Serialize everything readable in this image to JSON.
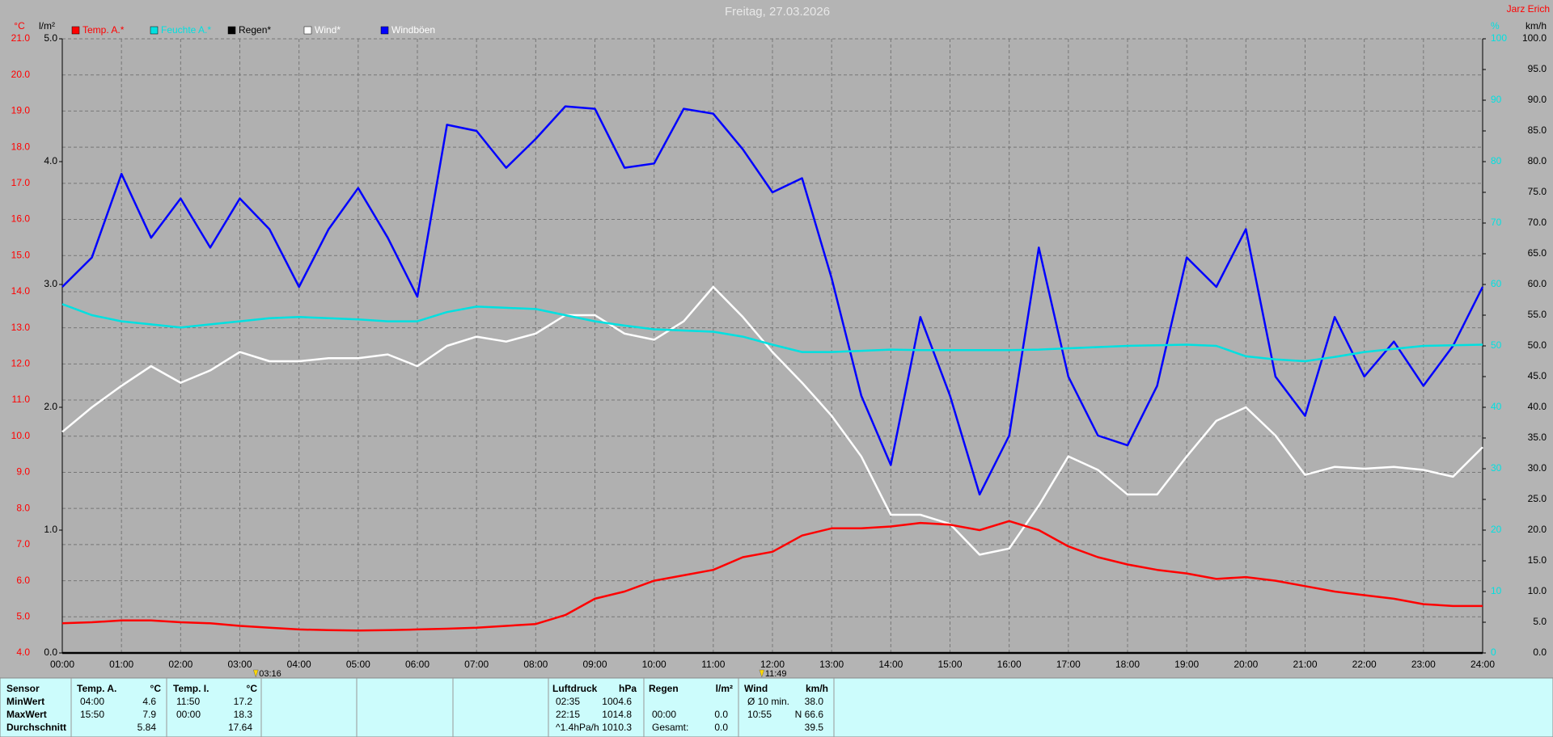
{
  "chart_data": {
    "type": "line",
    "title": "Freitag, 27.03.2026",
    "author": "Jarz Erich",
    "ylabel": "°C",
    "rain_ylabel": "l/m²",
    "cyan_ylabel": "%",
    "y2label": "km/h",
    "x": [
      0,
      0.5,
      1,
      1.5,
      2,
      2.5,
      3,
      3.5,
      4,
      4.5,
      5,
      5.5,
      6,
      6.5,
      7,
      7.5,
      8,
      8.5,
      9,
      9.5,
      10,
      10.5,
      11,
      11.5,
      12,
      12.5,
      13,
      13.5,
      14,
      14.5,
      15,
      15.5,
      16,
      16.5,
      17,
      17.5,
      18,
      18.5,
      19,
      19.5,
      20,
      20.5,
      21,
      21.5,
      22,
      22.5,
      23,
      23.5,
      24
    ],
    "xlim": [
      0,
      24
    ],
    "xticks": [
      {
        "value": 0,
        "label": "00:00"
      },
      {
        "value": 1,
        "label": "01:00"
      },
      {
        "value": 2,
        "label": "02:00"
      },
      {
        "value": 3,
        "label": "03:00"
      },
      {
        "value": 4,
        "label": "04:00"
      },
      {
        "value": 5,
        "label": "05:00"
      },
      {
        "value": 6,
        "label": "06:00"
      },
      {
        "value": 7,
        "label": "07:00"
      },
      {
        "value": 8,
        "label": "08:00"
      },
      {
        "value": 9,
        "label": "09:00"
      },
      {
        "value": 10,
        "label": "10:00"
      },
      {
        "value": 11,
        "label": "11:00"
      },
      {
        "value": 12,
        "label": "12:00"
      },
      {
        "value": 13,
        "label": "13:00"
      },
      {
        "value": 14,
        "label": "14:00"
      },
      {
        "value": 15,
        "label": "15:00"
      },
      {
        "value": 16,
        "label": "16:00"
      },
      {
        "value": 17,
        "label": "17:00"
      },
      {
        "value": 18,
        "label": "18:00"
      },
      {
        "value": 19,
        "label": "19:00"
      },
      {
        "value": 20,
        "label": "20:00"
      },
      {
        "value": 21,
        "label": "21:00"
      },
      {
        "value": 22,
        "label": "22:00"
      },
      {
        "value": 23,
        "label": "23:00"
      },
      {
        "value": 24,
        "label": "24:00"
      }
    ],
    "ylim": [
      4,
      21
    ],
    "yticks": [
      {
        "value": 4,
        "label": "4.0"
      },
      {
        "value": 5,
        "label": "5.0"
      },
      {
        "value": 6,
        "label": "6.0"
      },
      {
        "value": 7,
        "label": "7.0"
      },
      {
        "value": 8,
        "label": "8.0"
      },
      {
        "value": 9,
        "label": "9.0"
      },
      {
        "value": 10,
        "label": "10.0"
      },
      {
        "value": 11,
        "label": "11.0"
      },
      {
        "value": 12,
        "label": "12.0"
      },
      {
        "value": 13,
        "label": "13.0"
      },
      {
        "value": 14,
        "label": "14.0"
      },
      {
        "value": 15,
        "label": "15.0"
      },
      {
        "value": 16,
        "label": "16.0"
      },
      {
        "value": 17,
        "label": "17.0"
      },
      {
        "value": 18,
        "label": "18.0"
      },
      {
        "value": 19,
        "label": "19.0"
      },
      {
        "value": 20,
        "label": "20.0"
      },
      {
        "value": 21,
        "label": "21.0"
      }
    ],
    "rain_ylim": [
      0,
      5
    ],
    "rain_yticks": [
      {
        "value": 0,
        "label": "0.0"
      },
      {
        "value": 1,
        "label": "1.0"
      },
      {
        "value": 2,
        "label": "2.0"
      },
      {
        "value": 3,
        "label": "3.0"
      },
      {
        "value": 4,
        "label": "4.0"
      },
      {
        "value": 5,
        "label": "5.0"
      }
    ],
    "y2lim": [
      0,
      100
    ],
    "y2ticks": [
      {
        "value": 0,
        "label": "0.0"
      },
      {
        "value": 5,
        "label": "5.0"
      },
      {
        "value": 10,
        "label": "10.0"
      },
      {
        "value": 15,
        "label": "15.0"
      },
      {
        "value": 20,
        "label": "20.0"
      },
      {
        "value": 25,
        "label": "25.0"
      },
      {
        "value": 30,
        "label": "30.0"
      },
      {
        "value": 35,
        "label": "35.0"
      },
      {
        "value": 40,
        "label": "40.0"
      },
      {
        "value": 45,
        "label": "45.0"
      },
      {
        "value": 50,
        "label": "50.0"
      },
      {
        "value": 55,
        "label": "55.0"
      },
      {
        "value": 60,
        "label": "60.0"
      },
      {
        "value": 65,
        "label": "65.0"
      },
      {
        "value": 70,
        "label": "70.0"
      },
      {
        "value": 75,
        "label": "75.0"
      },
      {
        "value": 80,
        "label": "80.0"
      },
      {
        "value": 85,
        "label": "85.0"
      },
      {
        "value": 90,
        "label": "90.0"
      },
      {
        "value": 95,
        "label": "95.0"
      },
      {
        "value": 100,
        "label": "100.0"
      }
    ],
    "cyan_yticks": [
      0,
      10,
      20,
      30,
      40,
      50,
      60,
      70,
      80,
      90,
      100
    ],
    "grid": true,
    "series": [
      {
        "name": "Temp. A.*",
        "color": "#ff0000",
        "label_color": "#ff0000",
        "axis": "y",
        "values": [
          4.82,
          4.85,
          4.9,
          4.9,
          4.85,
          4.82,
          4.75,
          4.7,
          4.65,
          4.63,
          4.62,
          4.63,
          4.65,
          4.67,
          4.7,
          4.75,
          4.8,
          5.05,
          5.5,
          5.7,
          6.0,
          6.15,
          6.3,
          6.65,
          6.8,
          7.25,
          7.45,
          7.45,
          7.5,
          7.6,
          7.55,
          7.4,
          7.65,
          7.4,
          6.95,
          6.65,
          6.45,
          6.3,
          6.2,
          6.05,
          6.1,
          6.0,
          5.85,
          5.7,
          5.6,
          5.5,
          5.35,
          5.3,
          5.3
        ]
      },
      {
        "name": "Feuchte A.*",
        "color": "#00e0e0",
        "label_color": "#00e0e0",
        "axis": "y2",
        "values": [
          56.8,
          55,
          54,
          53.5,
          53,
          53.5,
          54,
          54.5,
          54.7,
          54.5,
          54.3,
          54,
          54,
          55.5,
          56.4,
          56.2,
          56,
          55,
          54,
          53.3,
          52.7,
          52.5,
          52.3,
          51.5,
          50.2,
          49,
          49,
          49.2,
          49.4,
          49.3,
          49.3,
          49.3,
          49.3,
          49.4,
          49.6,
          49.8,
          50,
          50.1,
          50.2,
          50,
          48.3,
          47.8,
          47.5,
          48.2,
          49,
          49.5,
          50,
          50.1,
          50.2
        ]
      },
      {
        "name": "Regen*",
        "color": "#000000",
        "label_color": "#000000",
        "axis": "rain",
        "values": [
          0,
          0,
          0,
          0,
          0,
          0,
          0,
          0,
          0,
          0,
          0,
          0,
          0,
          0,
          0,
          0,
          0,
          0,
          0,
          0,
          0,
          0,
          0,
          0,
          0,
          0,
          0,
          0,
          0,
          0,
          0,
          0,
          0,
          0,
          0,
          0,
          0,
          0,
          0,
          0,
          0,
          0,
          0,
          0,
          0,
          0,
          0,
          0,
          0
        ]
      },
      {
        "name": "Wind*",
        "color": "#ffffff",
        "label_color": "#ffffff",
        "axis": "y2",
        "values": [
          36,
          40,
          43.5,
          46.7,
          44,
          46,
          49,
          47.5,
          47.5,
          48,
          48,
          48.6,
          46.7,
          50,
          51.5,
          50.7,
          52,
          55,
          55,
          52,
          51,
          54,
          59.6,
          54.7,
          49,
          44,
          38.6,
          32,
          22.5,
          22.5,
          21,
          16,
          17,
          24,
          32,
          29.8,
          25.8,
          25.8,
          32,
          37.8,
          40,
          35.4,
          29,
          30.3,
          30,
          30.3,
          29.8,
          28.7,
          33.5
        ]
      },
      {
        "name": "Windböen",
        "color": "#0000ff",
        "label_color": "#ffffff",
        "axis": "y2",
        "values": [
          59.6,
          64.4,
          78,
          67.6,
          74,
          66,
          74,
          69,
          59.6,
          69,
          75.7,
          67.6,
          58,
          86,
          85,
          79,
          83.7,
          89,
          88.6,
          79,
          79.7,
          88.6,
          87.8,
          82,
          75,
          77.3,
          61,
          41.9,
          30.6,
          54.7,
          41.9,
          25.8,
          35.4,
          66,
          45,
          35.4,
          33.8,
          43.5,
          64.4,
          59.6,
          69,
          45,
          38.6,
          54.7,
          45,
          50.7,
          43.5,
          50,
          59.6
        ]
      }
    ],
    "annotations": [
      {
        "x": 3.27,
        "label": "03:16"
      },
      {
        "x": 11.82,
        "label": "11:49"
      }
    ]
  },
  "stats": {
    "row_labels": [
      "Sensor",
      "MinWert",
      "MaxWert",
      "Durchschnitt"
    ],
    "groups": [
      {
        "name": "Temp. A.",
        "unit": "°C",
        "rows": [
          [
            "04:00",
            "4.6"
          ],
          [
            "15:50",
            "7.9"
          ],
          [
            null,
            "5.84"
          ]
        ]
      },
      {
        "name": "Temp. I.",
        "unit": "°C",
        "rows": [
          [
            "11:50",
            "17.2"
          ],
          [
            "00:00",
            "18.3"
          ],
          [
            null,
            "17.64"
          ]
        ]
      },
      {
        "name": "Luftdruck",
        "unit": "hPa",
        "rows": [
          [
            "02:35",
            "1004.6"
          ],
          [
            "22:15",
            "1014.8"
          ],
          [
            "^1.4hPa/h",
            "1010.3"
          ]
        ]
      },
      {
        "name": "Regen",
        "unit": "l/m²",
        "rows": [
          [
            null,
            null
          ],
          [
            "00:00",
            "0.0"
          ],
          [
            "Gesamt:",
            "0.0"
          ]
        ]
      },
      {
        "name": "Wind",
        "unit": "km/h",
        "rows": [
          [
            "Ø 10 min.",
            "38.0"
          ],
          [
            "10:55",
            "N 66.6"
          ],
          [
            null,
            "39.5"
          ]
        ]
      }
    ]
  }
}
